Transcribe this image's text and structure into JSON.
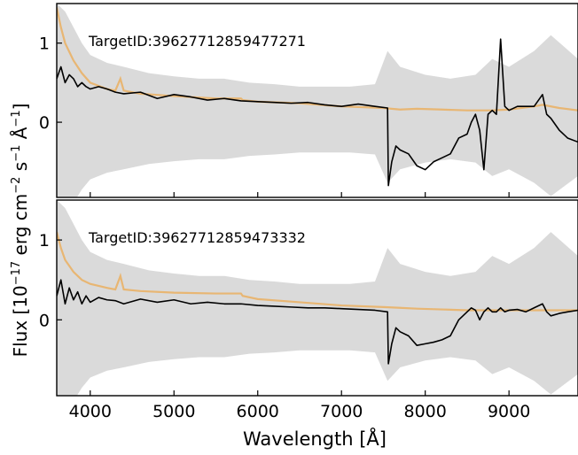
{
  "figure": {
    "xlabel": "Wavelength [Å]",
    "ylabel_pre": "Flux [10",
    "ylabel_exp1": "−17",
    "ylabel_mid1": " erg cm",
    "ylabel_exp2": "−2",
    "ylabel_mid2": " s",
    "ylabel_exp3": "−1",
    "ylabel_mid3": " Å",
    "ylabel_exp4": "−1",
    "ylabel_post": "]"
  },
  "colors": {
    "flux": "#000000",
    "noise": "#d3d3d3",
    "model": "#e8b673"
  },
  "chart_data": [
    {
      "type": "line",
      "annotation": "TargetID:39627712859477271",
      "xlim": [
        3600,
        9824
      ],
      "ylim": [
        -0.95,
        1.5
      ],
      "xticks": [
        4000,
        5000,
        6000,
        7000,
        8000,
        9000
      ],
      "xtick_labels": [
        "4000",
        "5000",
        "6000",
        "7000",
        "8000",
        "9000"
      ],
      "yticks": [
        0,
        1
      ],
      "ytick_labels": [
        "0",
        "1"
      ],
      "grid": false,
      "series": [
        {
          "role": "noise",
          "x": [
            3600,
            3700,
            3800,
            3900,
            4000,
            4200,
            4400,
            4700,
            5000,
            5300,
            5600,
            5900,
            6200,
            6500,
            6800,
            7100,
            7400,
            7550,
            7700,
            8000,
            8300,
            8600,
            8800,
            9000,
            9300,
            9500,
            9824
          ],
          "y": [
            1.5,
            1.4,
            1.2,
            1.0,
            0.85,
            0.75,
            0.7,
            0.62,
            0.58,
            0.55,
            0.55,
            0.5,
            0.48,
            0.45,
            0.45,
            0.45,
            0.48,
            0.9,
            0.7,
            0.6,
            0.55,
            0.6,
            0.8,
            0.7,
            0.9,
            1.1,
            0.8
          ]
        },
        {
          "role": "model",
          "x": [
            3600,
            3650,
            3700,
            3800,
            3900,
            4000,
            4200,
            4300,
            4360,
            4400,
            4600,
            5000,
            5500,
            5800,
            5820,
            6000,
            6500,
            7000,
            7500,
            7700,
            7900,
            8200,
            8500,
            8800,
            9000,
            9300,
            9400,
            9600,
            9824
          ],
          "y": [
            1.45,
            1.2,
            1.0,
            0.78,
            0.62,
            0.5,
            0.42,
            0.4,
            0.55,
            0.4,
            0.36,
            0.33,
            0.3,
            0.3,
            0.28,
            0.26,
            0.24,
            0.2,
            0.18,
            0.16,
            0.17,
            0.16,
            0.15,
            0.15,
            0.16,
            0.2,
            0.22,
            0.18,
            0.15
          ]
        },
        {
          "role": "flux",
          "x": [
            3600,
            3650,
            3700,
            3750,
            3800,
            3850,
            3900,
            3950,
            4000,
            4100,
            4200,
            4300,
            4400,
            4600,
            4800,
            5000,
            5200,
            5400,
            5600,
            5800,
            6000,
            6200,
            6400,
            6600,
            6800,
            7000,
            7200,
            7400,
            7550,
            7560,
            7600,
            7650,
            7700,
            7800,
            7900,
            8000,
            8100,
            8200,
            8300,
            8400,
            8500,
            8550,
            8600,
            8650,
            8700,
            8750,
            8800,
            8850,
            8900,
            8950,
            9000,
            9100,
            9200,
            9300,
            9400,
            9450,
            9500,
            9600,
            9700,
            9824
          ],
          "y": [
            0.55,
            0.7,
            0.5,
            0.6,
            0.55,
            0.45,
            0.5,
            0.45,
            0.42,
            0.45,
            0.42,
            0.38,
            0.36,
            0.38,
            0.3,
            0.35,
            0.32,
            0.28,
            0.3,
            0.27,
            0.26,
            0.25,
            0.24,
            0.25,
            0.22,
            0.2,
            0.23,
            0.2,
            0.18,
            -0.8,
            -0.5,
            -0.3,
            -0.35,
            -0.4,
            -0.55,
            -0.6,
            -0.5,
            -0.45,
            -0.4,
            -0.2,
            -0.15,
            0.0,
            0.1,
            -0.1,
            -0.6,
            0.1,
            0.15,
            0.1,
            1.05,
            0.2,
            0.15,
            0.2,
            0.2,
            0.2,
            0.35,
            0.1,
            0.05,
            -0.1,
            -0.2,
            -0.25
          ]
        }
      ]
    },
    {
      "type": "line",
      "annotation": "TargetID:39627712859473332",
      "xlim": [
        3600,
        9824
      ],
      "ylim": [
        -0.95,
        1.5
      ],
      "xticks": [
        4000,
        5000,
        6000,
        7000,
        8000,
        9000
      ],
      "xtick_labels": [
        "4000",
        "5000",
        "6000",
        "7000",
        "8000",
        "9000"
      ],
      "yticks": [
        0,
        1
      ],
      "ytick_labels": [
        "0",
        "1"
      ],
      "grid": false,
      "series": [
        {
          "role": "noise",
          "x": [
            3600,
            3700,
            3800,
            3900,
            4000,
            4200,
            4400,
            4700,
            5000,
            5300,
            5600,
            5900,
            6200,
            6500,
            6800,
            7100,
            7400,
            7550,
            7700,
            8000,
            8300,
            8600,
            8800,
            9000,
            9300,
            9500,
            9824
          ],
          "y": [
            1.5,
            1.4,
            1.2,
            1.0,
            0.85,
            0.75,
            0.7,
            0.62,
            0.58,
            0.55,
            0.55,
            0.5,
            0.48,
            0.45,
            0.45,
            0.45,
            0.48,
            0.9,
            0.7,
            0.6,
            0.55,
            0.6,
            0.8,
            0.7,
            0.9,
            1.1,
            0.8
          ]
        },
        {
          "role": "model",
          "x": [
            3600,
            3650,
            3700,
            3800,
            3900,
            4000,
            4200,
            4300,
            4360,
            4400,
            4600,
            5000,
            5500,
            5800,
            5820,
            6000,
            6500,
            7000,
            7500,
            7700,
            7900,
            8200,
            8500,
            8800,
            9000,
            9300,
            9400,
            9600,
            9824
          ],
          "y": [
            1.1,
            0.9,
            0.75,
            0.6,
            0.5,
            0.45,
            0.4,
            0.38,
            0.55,
            0.38,
            0.36,
            0.34,
            0.33,
            0.33,
            0.3,
            0.26,
            0.22,
            0.18,
            0.16,
            0.15,
            0.14,
            0.13,
            0.12,
            0.12,
            0.12,
            0.12,
            0.12,
            0.12,
            0.12
          ]
        },
        {
          "role": "flux",
          "x": [
            3600,
            3650,
            3700,
            3750,
            3800,
            3850,
            3900,
            3950,
            4000,
            4100,
            4200,
            4300,
            4400,
            4600,
            4800,
            5000,
            5200,
            5400,
            5600,
            5800,
            6000,
            6200,
            6400,
            6600,
            6800,
            7000,
            7200,
            7400,
            7550,
            7560,
            7600,
            7650,
            7700,
            7800,
            7900,
            8000,
            8100,
            8200,
            8300,
            8400,
            8500,
            8550,
            8600,
            8650,
            8700,
            8750,
            8800,
            8850,
            8900,
            8950,
            9000,
            9100,
            9200,
            9300,
            9400,
            9450,
            9500,
            9600,
            9700,
            9824
          ],
          "y": [
            0.3,
            0.5,
            0.2,
            0.4,
            0.25,
            0.35,
            0.2,
            0.3,
            0.22,
            0.28,
            0.25,
            0.24,
            0.2,
            0.26,
            0.22,
            0.25,
            0.2,
            0.22,
            0.2,
            0.2,
            0.18,
            0.17,
            0.16,
            0.15,
            0.15,
            0.14,
            0.13,
            0.12,
            0.1,
            -0.55,
            -0.3,
            -0.1,
            -0.15,
            -0.2,
            -0.32,
            -0.3,
            -0.28,
            -0.25,
            -0.2,
            0.0,
            0.1,
            0.15,
            0.12,
            0.0,
            0.1,
            0.15,
            0.1,
            0.1,
            0.15,
            0.1,
            0.12,
            0.13,
            0.1,
            0.15,
            0.2,
            0.1,
            0.05,
            0.08,
            0.1,
            0.12
          ]
        }
      ]
    }
  ]
}
